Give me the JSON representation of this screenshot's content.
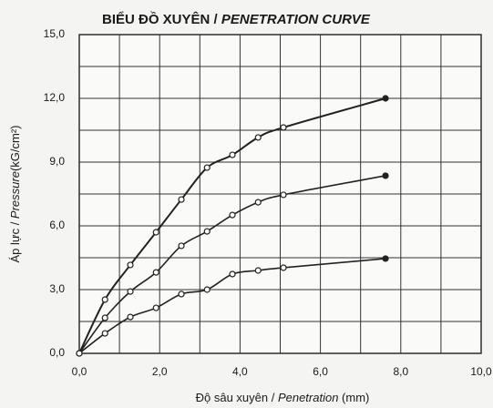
{
  "chart_data": {
    "type": "scatter",
    "title": [
      "BIỂU ĐỒ XUYÊN / ",
      "PENETRATION CURVE"
    ],
    "xlabel": [
      "Độ sâu xuyên / ",
      "Penetration",
      " (mm)"
    ],
    "ylabel": [
      "Áp lực / ",
      "Pressure",
      "(kG/cm²)"
    ],
    "x": [
      0,
      0.64,
      1.27,
      1.91,
      2.54,
      3.18,
      3.81,
      4.45,
      5.08,
      7.62
    ],
    "series": [
      {
        "color": "#222222",
        "values": [
          0,
          2.53,
          4.16,
          5.7,
          7.24,
          8.74,
          9.34,
          10.16,
          10.63,
          12.0
        ]
      },
      {
        "color": "#222222",
        "values": [
          0,
          1.67,
          2.91,
          3.81,
          5.06,
          5.74,
          6.51,
          7.11,
          7.46,
          8.36
        ]
      },
      {
        "color": "#222222",
        "values": [
          0,
          0.94,
          1.71,
          2.14,
          2.79,
          3.0,
          3.73,
          3.9,
          4.03,
          4.46
        ]
      }
    ],
    "xlim": [
      0,
      10
    ],
    "xticks": [
      {
        "value": 0,
        "label": "0,0"
      },
      {
        "value": 2,
        "label": "2,0"
      },
      {
        "value": 4,
        "label": "4,0"
      },
      {
        "value": 6,
        "label": "6,0"
      },
      {
        "value": 8,
        "label": "8,0"
      },
      {
        "value": 10,
        "label": "10,0"
      }
    ],
    "xminorticks": [
      1,
      3,
      5,
      7,
      9
    ],
    "ylim": [
      0,
      15
    ],
    "yticks": [
      {
        "value": 0,
        "label": "0,0"
      },
      {
        "value": 3,
        "label": "3,0"
      },
      {
        "value": 6,
        "label": "6,0"
      },
      {
        "value": 9,
        "label": "9,0"
      },
      {
        "value": 12,
        "label": "12,0"
      },
      {
        "value": 15,
        "label": "15,0"
      }
    ],
    "yminorticks": [
      1.5,
      4.5,
      7.5,
      10.5,
      13.5
    ],
    "grid": true
  }
}
